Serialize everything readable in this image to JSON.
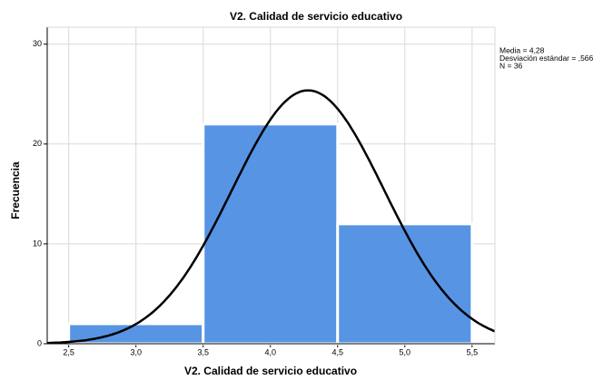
{
  "chart_data": {
    "type": "histogram",
    "title": "V2. Calidad de servicio educativo",
    "x_label": "V2. Calidad de servicio educativo",
    "y_label": "Frecuencia",
    "bins": [
      2.5,
      3.5,
      4.5,
      5.5
    ],
    "counts": [
      2,
      22,
      12
    ],
    "color": "#5794e4",
    "xlim": [
      2.34,
      5.67
    ],
    "ylim": [
      0,
      31.7
    ],
    "xticks": [
      {
        "value": 2.5,
        "label": "2,5"
      },
      {
        "value": 3.0,
        "label": "3,0"
      },
      {
        "value": 3.5,
        "label": "3,5"
      },
      {
        "value": 4.0,
        "label": "4,0"
      },
      {
        "value": 4.5,
        "label": "4,5"
      },
      {
        "value": 5.0,
        "label": "5,0"
      },
      {
        "value": 5.5,
        "label": "5,5"
      }
    ],
    "yticks": [
      0,
      10,
      20,
      30
    ],
    "grid": true,
    "normal_curve": {
      "mean": 4.28,
      "sd": 0.566,
      "n": 36,
      "color": "#000000",
      "labels": [
        "Media = 4,28",
        "Desviación estándar = ,566",
        "N = 36"
      ]
    }
  }
}
